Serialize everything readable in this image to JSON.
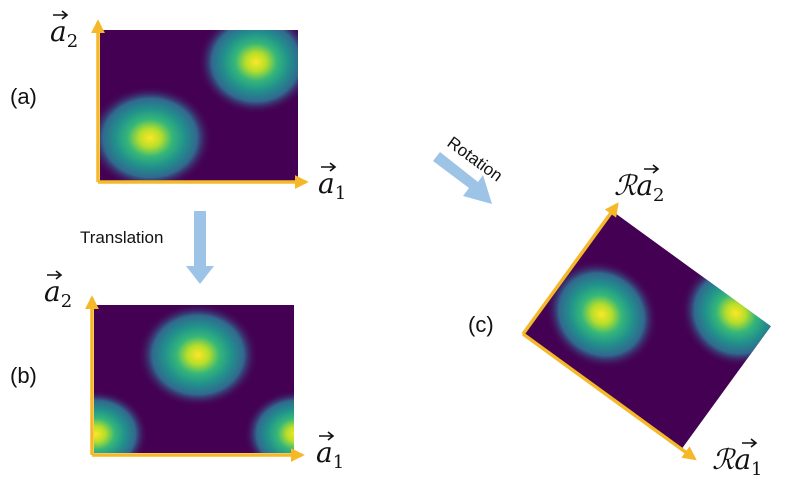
{
  "panels": {
    "a": {
      "label": "(a)",
      "axis1": "a",
      "axis1_sub": "1",
      "axis2": "a",
      "axis2_sub": "2"
    },
    "b": {
      "label": "(b)",
      "axis1": "a",
      "axis1_sub": "1",
      "axis2": "a",
      "axis2_sub": "2"
    },
    "c": {
      "label": "(c)",
      "axis1_prefix": "ℛ",
      "axis1": "a",
      "axis1_sub": "1",
      "axis2_prefix": "ℛ",
      "axis2": "a",
      "axis2_sub": "2"
    }
  },
  "arrows": {
    "translation": "Translation",
    "rotation": "Rotation"
  },
  "colors": {
    "axis": "#f5b829",
    "arrow": "#9dc3e6",
    "background": "#440154",
    "peak": "#fde725"
  }
}
